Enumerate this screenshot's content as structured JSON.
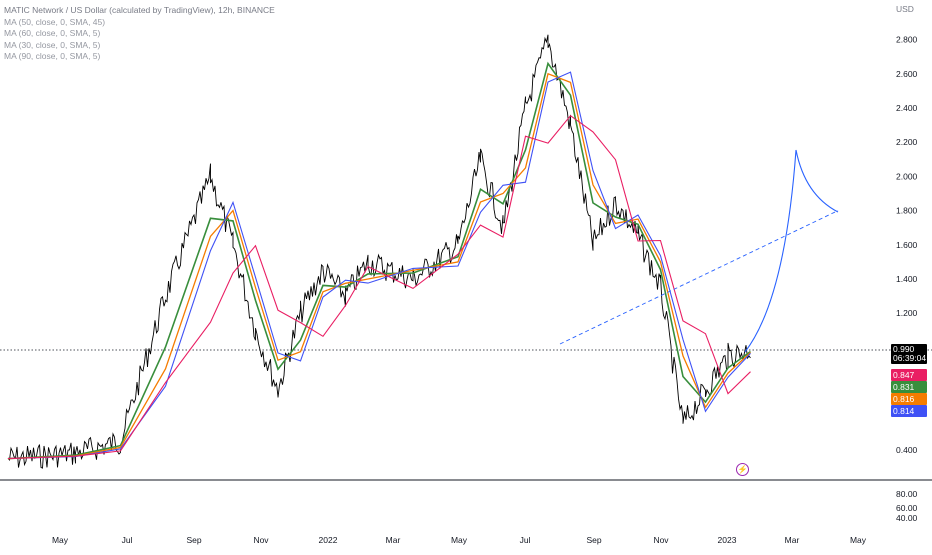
{
  "legend": {
    "title": "MATIC Network / US Dollar (calculated by TradingView), 12h, BINANCE",
    "ma_lines": [
      "MA (50, close, 0, SMA, 45)",
      "MA (60, close, 0, SMA, 5)",
      "MA (30, close, 0, SMA, 5)",
      "MA (90, close, 0, SMA, 5)"
    ]
  },
  "price_axis": {
    "currency": "USD",
    "ticks": [
      "2.800",
      "2.600",
      "2.400",
      "2.200",
      "2.000",
      "1.800",
      "1.600",
      "1.400",
      "1.200",
      "0.400"
    ]
  },
  "volume_axis": {
    "ticks": [
      "80.00",
      "60.00",
      "40.00"
    ]
  },
  "time_axis": {
    "ticks": [
      "May",
      "Jul",
      "Sep",
      "Nov",
      "2022",
      "Mar",
      "May",
      "Jul",
      "Sep",
      "Nov",
      "2023",
      "Mar",
      "May"
    ]
  },
  "current_price": {
    "value": "0.990",
    "countdown": "06:39:04",
    "color": "#000000"
  },
  "ma_tags": [
    {
      "value": "0.847",
      "color": "#e91e63"
    },
    {
      "value": "0.831",
      "color": "#388e3c"
    },
    {
      "value": "0.816",
      "color": "#f57c00"
    },
    {
      "value": "0.814",
      "color": "#3f51f5"
    }
  ],
  "colors": {
    "candles": "#000000",
    "ma_green": "#388e3c",
    "ma_orange": "#f57c00",
    "ma_blue": "#3f51f5",
    "ma_red": "#e91e63",
    "projection": "#2962ff"
  },
  "chart_data": {
    "type": "line",
    "title": "MATIC Network / US Dollar (calculated by TradingView), 12h, BINANCE",
    "ylabel": "USD",
    "ylim": [
      0.3,
      2.95
    ],
    "xaxis_ticks": [
      "May",
      "Jul",
      "Sep",
      "Nov",
      "2022",
      "Mar",
      "May",
      "Jul",
      "Sep",
      "Nov",
      "2023",
      "Mar",
      "May"
    ],
    "x": [
      0,
      3,
      5,
      7,
      9,
      10,
      11,
      12,
      13,
      14,
      15,
      16,
      18,
      20,
      21,
      22,
      23,
      24,
      25,
      26,
      27,
      28,
      29,
      30,
      31,
      32,
      33
    ],
    "series": [
      {
        "name": "MATIC/USD",
        "values": [
          0.35,
          0.38,
          0.45,
          1.3,
          2.0,
          1.6,
          1.1,
          0.75,
          1.2,
          1.45,
          1.3,
          1.5,
          1.4,
          1.6,
          2.1,
          1.7,
          2.4,
          2.8,
          2.3,
          1.6,
          1.85,
          1.65,
          1.35,
          0.55,
          0.75,
          0.95,
          0.99
        ]
      }
    ],
    "price_line": 0.99,
    "ma_last_values": [
      0.847,
      0.831,
      0.816,
      0.814
    ]
  }
}
